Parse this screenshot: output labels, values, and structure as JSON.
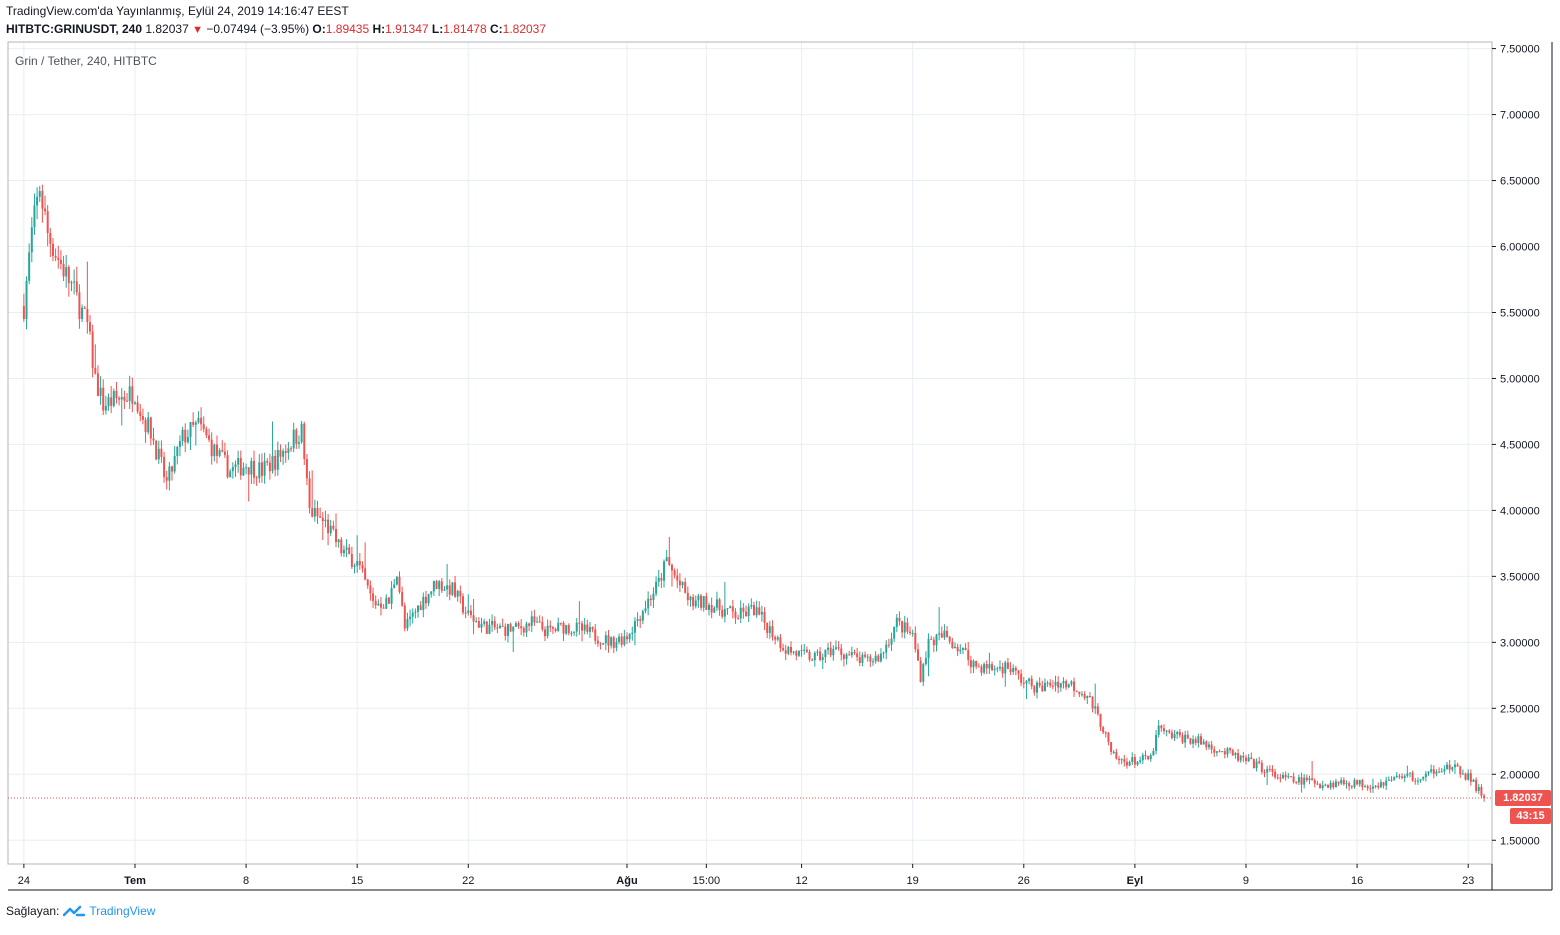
{
  "header": {
    "published": "TradingView.com'da Yayınlanmış, Eylül 24, 2019 14:16:47 EEST",
    "symbol": "HITBTC:GRINUSDT, 240",
    "last": "1.82037",
    "change": "−0.07494 (−3.95%)",
    "o_label": "O:",
    "o_value": "1.89435",
    "h_label": "H:",
    "h_value": "1.91347",
    "l_label": "L:",
    "l_value": "1.81478",
    "c_label": "C:",
    "c_value": "1.82037"
  },
  "legend": "Grin / Tether, 240, HITBTC",
  "price_badge": "1.82037",
  "timer_badge": "43:15",
  "footer": {
    "label": "Sağlayan:",
    "brand": "TradingView"
  },
  "colors": {
    "up": "#26a69a",
    "down": "#ef5350",
    "grid": "#e8eef2",
    "axis": "#131722"
  },
  "chart_data": {
    "type": "candlestick",
    "title": "Grin / Tether, 240, HITBTC",
    "y_ticks": [
      "1.50000",
      "2.00000",
      "2.50000",
      "3.00000",
      "3.50000",
      "4.00000",
      "4.50000",
      "5.00000",
      "5.50000",
      "6.00000",
      "6.50000",
      "7.00000",
      "7.50000"
    ],
    "ylim": [
      1.32,
      7.55
    ],
    "x_ticks": [
      "24",
      "Tem",
      "8",
      "15",
      "22",
      "Ağu",
      "15:00",
      "12",
      "19",
      "26",
      "Eyl",
      "9",
      "16",
      "23"
    ],
    "x_tick_days": [
      0,
      7,
      14,
      21,
      28,
      38,
      43,
      49,
      56,
      63,
      70,
      77,
      84,
      91
    ],
    "x_range_days": [
      -1,
      92.5
    ],
    "last_close": 1.82037,
    "grid": true,
    "trend_points": [
      [
        0,
        5.55
      ],
      [
        0.5,
        6.1
      ],
      [
        1,
        6.45
      ],
      [
        1.5,
        6.1
      ],
      [
        2,
        5.95
      ],
      [
        3,
        5.7
      ],
      [
        4,
        5.4
      ],
      [
        4.5,
        5.0
      ],
      [
        5,
        4.8
      ],
      [
        6,
        4.85
      ],
      [
        7,
        4.9
      ],
      [
        7.5,
        4.7
      ],
      [
        8,
        4.6
      ],
      [
        8.5,
        4.4
      ],
      [
        9,
        4.2
      ],
      [
        10,
        4.55
      ],
      [
        11,
        4.65
      ],
      [
        12,
        4.45
      ],
      [
        13,
        4.3
      ],
      [
        14,
        4.35
      ],
      [
        15,
        4.3
      ],
      [
        16,
        4.4
      ],
      [
        17,
        4.55
      ],
      [
        17.5,
        4.6
      ],
      [
        18,
        4.0
      ],
      [
        19,
        3.9
      ],
      [
        20,
        3.7
      ],
      [
        21,
        3.6
      ],
      [
        22,
        3.3
      ],
      [
        23,
        3.3
      ],
      [
        23.5,
        3.55
      ],
      [
        24,
        3.1
      ],
      [
        25,
        3.3
      ],
      [
        26,
        3.45
      ],
      [
        27,
        3.4
      ],
      [
        28,
        3.2
      ],
      [
        29,
        3.12
      ],
      [
        30,
        3.1
      ],
      [
        31,
        3.1
      ],
      [
        32,
        3.15
      ],
      [
        33,
        3.08
      ],
      [
        34,
        3.12
      ],
      [
        35,
        3.1
      ],
      [
        36,
        3.05
      ],
      [
        37,
        3.0
      ],
      [
        38,
        3.05
      ],
      [
        39,
        3.25
      ],
      [
        40,
        3.45
      ],
      [
        40.5,
        3.62
      ],
      [
        41,
        3.5
      ],
      [
        42,
        3.3
      ],
      [
        43,
        3.3
      ],
      [
        44,
        3.25
      ],
      [
        45,
        3.2
      ],
      [
        46,
        3.25
      ],
      [
        47,
        3.1
      ],
      [
        48,
        2.95
      ],
      [
        49,
        2.9
      ],
      [
        50,
        2.88
      ],
      [
        51,
        2.95
      ],
      [
        52,
        2.9
      ],
      [
        53,
        2.85
      ],
      [
        54,
        2.9
      ],
      [
        55,
        3.15
      ],
      [
        56,
        3.05
      ],
      [
        56.5,
        2.75
      ],
      [
        57,
        3.0
      ],
      [
        58,
        3.05
      ],
      [
        59,
        2.95
      ],
      [
        60,
        2.82
      ],
      [
        61,
        2.8
      ],
      [
        62,
        2.82
      ],
      [
        63,
        2.7
      ],
      [
        64,
        2.65
      ],
      [
        65,
        2.7
      ],
      [
        66,
        2.68
      ],
      [
        67,
        2.6
      ],
      [
        68,
        2.35
      ],
      [
        68.5,
        2.15
      ],
      [
        69,
        2.1
      ],
      [
        70,
        2.1
      ],
      [
        71,
        2.12
      ],
      [
        71.5,
        2.35
      ],
      [
        72,
        2.3
      ],
      [
        73,
        2.28
      ],
      [
        74,
        2.25
      ],
      [
        75,
        2.2
      ],
      [
        76,
        2.15
      ],
      [
        77,
        2.1
      ],
      [
        78,
        2.05
      ],
      [
        79,
        1.98
      ],
      [
        80,
        1.95
      ],
      [
        81,
        1.95
      ],
      [
        82,
        1.92
      ],
      [
        83,
        1.94
      ],
      [
        84,
        1.93
      ],
      [
        85,
        1.92
      ],
      [
        86,
        1.95
      ],
      [
        87,
        2.0
      ],
      [
        88,
        1.95
      ],
      [
        89,
        2.05
      ],
      [
        90,
        2.05
      ],
      [
        91,
        1.98
      ],
      [
        92,
        1.82
      ]
    ]
  }
}
